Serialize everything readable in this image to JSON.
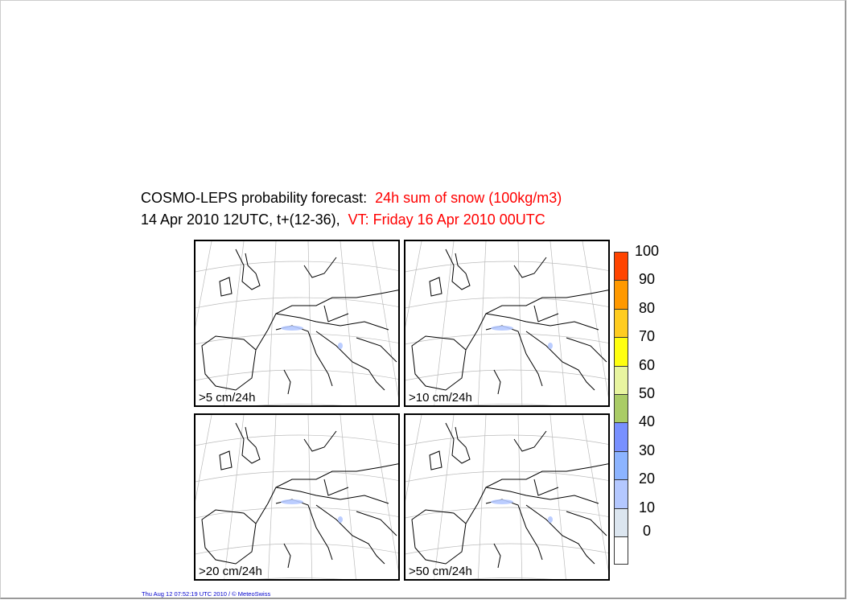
{
  "title": {
    "line1_black": "COSMO-LEPS probability forecast:",
    "line1_red": "24h sum of snow (100kg/m3)",
    "line2_black": "14 Apr 2010 12UTC, t+(12-36),",
    "line2_red": "VT: Friday 16 Apr 2010 00UTC"
  },
  "panels": [
    {
      "label": ">5 cm/24h"
    },
    {
      "label": ">10 cm/24h"
    },
    {
      "label": ">20 cm/24h"
    },
    {
      "label": ">50 cm/24h"
    }
  ],
  "chart_data": {
    "type": "heatmap",
    "title": "COSMO-LEPS probability forecast: 24h sum of snow (100kg/m3)",
    "subtitle": "14 Apr 2010 12UTC, t+(12-36), VT: Friday 16 Apr 2010 00UTC",
    "panels": [
      ">5 cm/24h",
      ">10 cm/24h",
      ">20 cm/24h",
      ">50 cm/24h"
    ],
    "colorbar": {
      "ticks": [
        "0",
        "10",
        "20",
        "30",
        "40",
        "50",
        "60",
        "70",
        "80",
        "90",
        "100"
      ],
      "colors": [
        "#ffffff",
        "#dce6f0",
        "#b4c8ff",
        "#8cb4ff",
        "#7890ff",
        "#aacc66",
        "#e8f5a0",
        "#ffff10",
        "#ffcc20",
        "#ff9900",
        "#ff4400"
      ]
    }
  },
  "footer": "Thu Aug 12 07:52:19 UTC 2010 / © MeteoSwiss"
}
